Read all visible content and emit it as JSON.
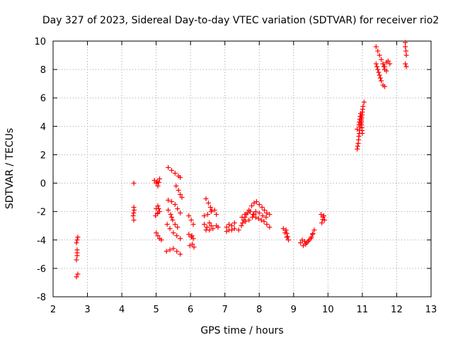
{
  "chart_data": {
    "type": "scatter",
    "title": "Day 327 of 2023, Sidereal Day-to-day VTEC variation (SDTVAR) for receiver rio2",
    "xlabel": "GPS time / hours",
    "ylabel": "SDTVAR / TECUs",
    "xlim": [
      2,
      13
    ],
    "ylim": [
      -8,
      10
    ],
    "xticks": [
      "2",
      "3",
      "4",
      "5",
      "6",
      "7",
      "8",
      "9",
      "10",
      "11",
      "12",
      "13"
    ],
    "yticks": [
      "-8",
      "-6",
      "-4",
      "-2",
      "0",
      "2",
      "4",
      "6",
      "8",
      "10"
    ],
    "grid": true,
    "marker": "plus",
    "color": "#ff0000",
    "segments": [
      [
        [
          2.72,
          -3.8
        ],
        [
          2.7,
          -4.0
        ],
        [
          2.68,
          -4.2
        ]
      ],
      [
        [
          2.7,
          -4.7
        ],
        [
          2.7,
          -5.1
        ],
        [
          2.68,
          -5.4
        ]
      ],
      [
        [
          2.72,
          -6.4
        ],
        [
          2.68,
          -6.6
        ]
      ],
      [
        [
          4.35,
          0.0
        ]
      ],
      [
        [
          4.35,
          -1.7
        ],
        [
          4.36,
          -1.9
        ],
        [
          4.33,
          -2.3
        ],
        [
          4.35,
          -2.6
        ]
      ],
      [
        [
          4.95,
          0.2
        ],
        [
          5.0,
          0.0
        ],
        [
          5.05,
          -0.2
        ],
        [
          5.1,
          0.3
        ],
        [
          5.03,
          0.1
        ]
      ],
      [
        [
          5.0,
          -1.8
        ],
        [
          5.05,
          -1.6
        ],
        [
          5.1,
          -2.0
        ],
        [
          4.98,
          -2.3
        ],
        [
          5.04,
          -2.1
        ]
      ],
      [
        [
          5.0,
          -3.5
        ],
        [
          5.05,
          -3.7
        ],
        [
          5.1,
          -3.9
        ],
        [
          5.15,
          -4.0
        ]
      ],
      [
        [
          5.35,
          1.1
        ],
        [
          5.45,
          0.9
        ],
        [
          5.55,
          0.7
        ],
        [
          5.65,
          0.5
        ],
        [
          5.7,
          0.4
        ]
      ],
      [
        [
          5.58,
          -0.2
        ],
        [
          5.65,
          -0.5
        ],
        [
          5.7,
          -0.8
        ],
        [
          5.75,
          -1.0
        ]
      ],
      [
        [
          5.35,
          -1.2
        ],
        [
          5.45,
          -1.3
        ],
        [
          5.55,
          -1.5
        ],
        [
          5.62,
          -1.8
        ],
        [
          5.7,
          -2.1
        ]
      ],
      [
        [
          5.35,
          -1.9
        ],
        [
          5.42,
          -2.2
        ],
        [
          5.48,
          -2.6
        ],
        [
          5.55,
          -2.9
        ],
        [
          5.62,
          -3.1
        ]
      ],
      [
        [
          5.32,
          -2.9
        ],
        [
          5.4,
          -3.2
        ],
        [
          5.5,
          -3.5
        ],
        [
          5.6,
          -3.7
        ],
        [
          5.7,
          -3.9
        ]
      ],
      [
        [
          5.3,
          -4.8
        ],
        [
          5.4,
          -4.7
        ],
        [
          5.5,
          -4.6
        ],
        [
          5.6,
          -4.8
        ],
        [
          5.7,
          -5.0
        ]
      ],
      [
        [
          5.95,
          -2.3
        ],
        [
          6.02,
          -2.6
        ],
        [
          6.08,
          -2.9
        ]
      ],
      [
        [
          5.95,
          -3.6
        ],
        [
          6.02,
          -3.8
        ],
        [
          6.08,
          -3.9
        ],
        [
          6.04,
          -3.7
        ]
      ],
      [
        [
          5.98,
          -4.4
        ],
        [
          6.05,
          -4.3
        ],
        [
          6.1,
          -4.5
        ]
      ],
      [
        [
          6.45,
          -1.1
        ],
        [
          6.52,
          -1.4
        ],
        [
          6.58,
          -1.7
        ],
        [
          6.62,
          -1.9
        ]
      ],
      [
        [
          6.4,
          -2.3
        ],
        [
          6.5,
          -2.2
        ],
        [
          6.6,
          -2.0
        ],
        [
          6.7,
          -1.9
        ],
        [
          6.75,
          -2.2
        ]
      ],
      [
        [
          6.4,
          -2.9
        ],
        [
          6.48,
          -3.1
        ],
        [
          6.55,
          -2.8
        ],
        [
          6.65,
          -3.2
        ],
        [
          6.75,
          -3.0
        ],
        [
          6.8,
          -3.1
        ]
      ],
      [
        [
          6.45,
          -3.3
        ],
        [
          6.55,
          -3.3
        ]
      ],
      [
        [
          7.05,
          -3.1
        ],
        [
          7.12,
          -2.9
        ],
        [
          7.2,
          -3.0
        ],
        [
          7.28,
          -2.8
        ]
      ],
      [
        [
          7.05,
          -3.4
        ],
        [
          7.12,
          -3.3
        ],
        [
          7.2,
          -3.3
        ],
        [
          7.28,
          -3.2
        ]
      ],
      [
        [
          7.4,
          -3.3
        ],
        [
          7.48,
          -3.0
        ],
        [
          7.55,
          -2.6
        ],
        [
          7.62,
          -2.2
        ],
        [
          7.7,
          -1.9
        ],
        [
          7.78,
          -1.6
        ],
        [
          7.85,
          -1.4
        ],
        [
          7.92,
          -1.3
        ],
        [
          8.0,
          -1.5
        ],
        [
          8.08,
          -1.7
        ],
        [
          8.15,
          -1.9
        ],
        [
          8.22,
          -2.1
        ],
        [
          8.3,
          -2.2
        ]
      ],
      [
        [
          7.5,
          -2.4
        ],
        [
          7.58,
          -2.2
        ],
        [
          7.66,
          -2.1
        ],
        [
          7.74,
          -2.0
        ],
        [
          7.82,
          -2.2
        ],
        [
          7.9,
          -2.4
        ],
        [
          7.98,
          -2.5
        ],
        [
          8.06,
          -2.6
        ],
        [
          8.14,
          -2.7
        ],
        [
          8.22,
          -2.9
        ],
        [
          8.3,
          -3.1
        ]
      ],
      [
        [
          7.6,
          -2.7
        ],
        [
          7.7,
          -2.6
        ],
        [
          7.8,
          -2.4
        ],
        [
          7.9,
          -2.0
        ],
        [
          8.0,
          -2.1
        ],
        [
          8.1,
          -2.3
        ],
        [
          8.2,
          -2.4
        ]
      ],
      [
        [
          8.7,
          -3.2
        ],
        [
          8.75,
          -3.5
        ],
        [
          8.8,
          -3.8
        ],
        [
          8.85,
          -4.0
        ],
        [
          8.78,
          -3.3
        ]
      ],
      [
        [
          9.2,
          -4.2
        ],
        [
          9.28,
          -4.4
        ],
        [
          9.35,
          -4.3
        ],
        [
          9.42,
          -4.1
        ],
        [
          9.5,
          -3.9
        ],
        [
          9.55,
          -3.6
        ],
        [
          9.6,
          -3.3
        ],
        [
          9.52,
          -3.8
        ],
        [
          9.45,
          -4.0
        ]
      ],
      [
        [
          9.25,
          -4.0
        ],
        [
          9.32,
          -4.1
        ],
        [
          9.38,
          -4.2
        ]
      ],
      [
        [
          9.8,
          -2.2
        ],
        [
          9.85,
          -2.4
        ],
        [
          9.9,
          -2.6
        ],
        [
          9.82,
          -2.8
        ],
        [
          9.88,
          -2.3
        ]
      ],
      [
        [
          10.85,
          2.4
        ],
        [
          10.88,
          2.8
        ],
        [
          10.9,
          3.3
        ],
        [
          10.92,
          3.7
        ],
        [
          10.95,
          4.2
        ],
        [
          10.98,
          4.6
        ],
        [
          11.0,
          5.0
        ],
        [
          11.02,
          5.4
        ],
        [
          11.05,
          5.7
        ]
      ],
      [
        [
          10.85,
          3.8
        ],
        [
          10.9,
          4.1
        ],
        [
          10.95,
          4.9
        ],
        [
          11.0,
          3.5
        ]
      ],
      [
        [
          11.4,
          9.6
        ],
        [
          11.45,
          9.3
        ],
        [
          11.5,
          9.0
        ],
        [
          11.55,
          8.7
        ],
        [
          11.6,
          8.4
        ],
        [
          11.65,
          8.0
        ],
        [
          11.7,
          7.9
        ]
      ],
      [
        [
          11.4,
          8.4
        ],
        [
          11.45,
          8.0
        ],
        [
          11.5,
          7.6
        ],
        [
          11.55,
          7.2
        ],
        [
          11.6,
          6.9
        ],
        [
          11.65,
          6.8
        ]
      ],
      [
        [
          11.6,
          8.4
        ],
        [
          11.65,
          8.2
        ],
        [
          11.7,
          8.5
        ],
        [
          11.75,
          8.6
        ],
        [
          11.8,
          8.4
        ]
      ],
      [
        [
          12.25,
          9.9
        ],
        [
          12.25,
          9.6
        ],
        [
          12.27,
          9.3
        ],
        [
          12.28,
          9.0
        ]
      ],
      [
        [
          12.25,
          8.4
        ],
        [
          12.28,
          8.2
        ]
      ]
    ]
  }
}
